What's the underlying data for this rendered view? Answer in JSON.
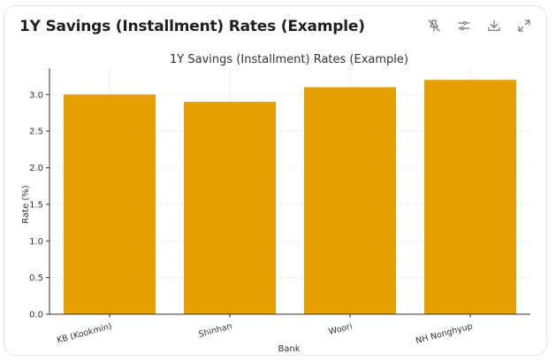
{
  "card": {
    "title": "1Y Savings (Installment) Rates (Example)"
  },
  "toolbar": [
    {
      "name": "unpin-icon",
      "label": "Unpin"
    },
    {
      "name": "filter-settings-icon",
      "label": "Adjust"
    },
    {
      "name": "download-icon",
      "label": "Download"
    },
    {
      "name": "expand-icon",
      "label": "Expand"
    }
  ],
  "colors": {
    "bar": "#E5A000",
    "axis": "#333333",
    "grid": "#d9d9d9",
    "text": "#333333"
  },
  "chart_data": {
    "type": "bar",
    "title": "1Y Savings (Installment) Rates (Example)",
    "xlabel": "Bank",
    "ylabel": "Rate (%)",
    "categories": [
      "KB (Kookmin)",
      "Shinhan",
      "Woori",
      "NH Nonghyup"
    ],
    "values": [
      3.0,
      2.9,
      3.1,
      3.2
    ],
    "ylim": [
      0,
      3.36
    ],
    "yticks": [
      "0.0",
      "0.5",
      "1.0",
      "1.5",
      "2.0",
      "2.5",
      "3.0"
    ],
    "grid": true,
    "legend": "none"
  }
}
